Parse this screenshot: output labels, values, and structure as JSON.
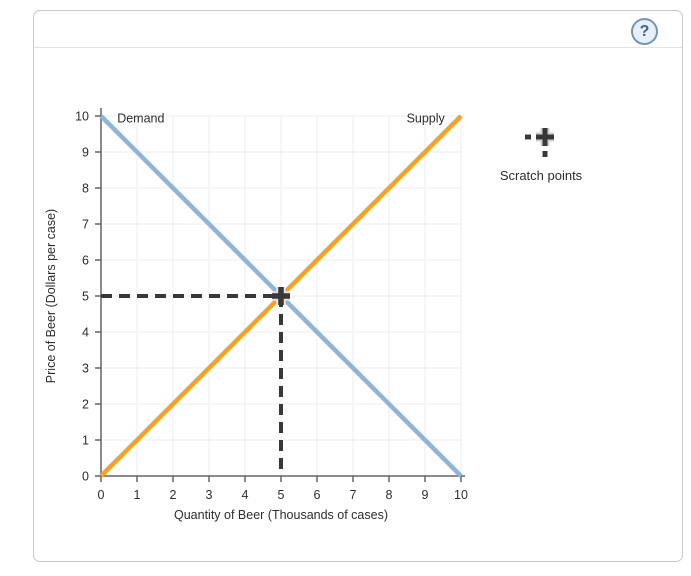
{
  "header": {
    "help_label": "?"
  },
  "scratch": {
    "label": "Scratch points",
    "icon": "scratch-point-cross-icon"
  },
  "chart_data": {
    "type": "line",
    "title": "",
    "xlabel": "Quantity of Beer (Thousands of cases)",
    "ylabel": "Price of Beer (Dollars per case)",
    "xlim": [
      0,
      10
    ],
    "ylim": [
      0,
      10
    ],
    "xticks": [
      0,
      1,
      2,
      3,
      4,
      5,
      6,
      7,
      8,
      9,
      10
    ],
    "yticks": [
      0,
      1,
      2,
      3,
      4,
      5,
      6,
      7,
      8,
      9,
      10
    ],
    "grid": true,
    "legend_position": "inline-labels",
    "series": [
      {
        "name": "Demand",
        "color": "#8db4dc",
        "x": [
          0,
          10
        ],
        "values": [
          10,
          0
        ],
        "label_anchor": "start",
        "label_at": [
          0.45,
          9.82
        ]
      },
      {
        "name": "Supply",
        "color": "#f9a11f",
        "x": [
          0,
          10
        ],
        "values": [
          0,
          10
        ],
        "label_anchor": "end",
        "label_at": [
          9.55,
          9.82
        ]
      }
    ],
    "equilibrium": {
      "x": 5,
      "y": 5,
      "note": "dashed guide lines with cross marker"
    }
  },
  "colors": {
    "demand": "#8db4dc",
    "supply": "#f9a11f",
    "grid": "#ececec",
    "axis": "#636363",
    "dash": "#383838",
    "marker_halo": "#e3e3e3",
    "accent_help": "#7094bd"
  }
}
